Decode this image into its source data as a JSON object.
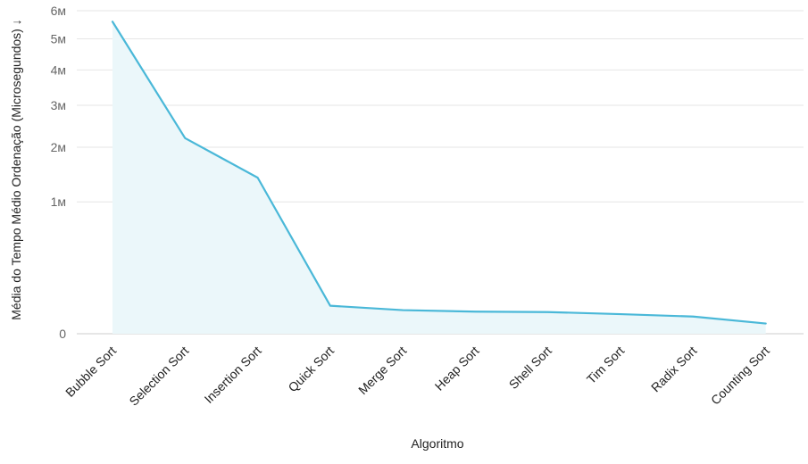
{
  "chart_data": {
    "type": "area",
    "categories": [
      "Bubble Sort",
      "Selection Sort",
      "Insertion Sort",
      "Quick Sort",
      "Merge Sort",
      "Heap Sort",
      "Shell Sort",
      "Tim Sort",
      "Radix Sort",
      "Counting Sort"
    ],
    "series": [
      {
        "values": [
          5600000,
          2200000,
          1400000,
          45000,
          32000,
          28000,
          27000,
          22000,
          17000,
          6000
        ]
      }
    ],
    "xlabel": "Algoritmo",
    "ylabel": "Média do Tempo Médio Ordenação (Microsegundos) ↓",
    "y_scale": "sqrt",
    "ylim": [
      0,
      6000000
    ],
    "yticks": [
      0,
      1000000,
      2000000,
      3000000,
      4000000,
      5000000,
      6000000
    ],
    "ytick_labels": [
      "0",
      "1м",
      "2м",
      "3м",
      "4м",
      "5м",
      "6м"
    ],
    "grid": true,
    "legend": "none",
    "colors": {
      "line": "#4ab8d8",
      "fill": "#ebf7fa",
      "grid": "#e6e6e6",
      "axis": "#cccccc"
    }
  }
}
